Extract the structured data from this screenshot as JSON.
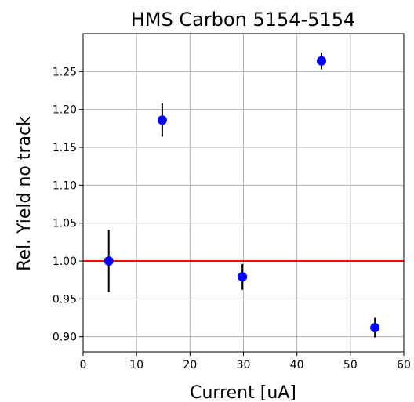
{
  "chart_data": {
    "type": "scatter",
    "title": "HMS Carbon 5154-5154",
    "xlabel": "Current [uA]",
    "ylabel": "Rel. Yield no track",
    "xlim": [
      0,
      60
    ],
    "ylim": [
      0.88,
      1.3
    ],
    "xticks": [
      0,
      10,
      20,
      30,
      40,
      50,
      60
    ],
    "xtick_labels": [
      "0",
      "10",
      "20",
      "30",
      "40",
      "50",
      "60"
    ],
    "yticks": [
      0.9,
      0.95,
      1.0,
      1.05,
      1.1,
      1.15,
      1.2,
      1.25
    ],
    "ytick_labels": [
      "0.90",
      "0.95",
      "1.00",
      "1.05",
      "1.10",
      "1.15",
      "1.20",
      "1.25"
    ],
    "grid": true,
    "points": [
      {
        "x": 4.8,
        "y": 1.0,
        "err": 0.041
      },
      {
        "x": 14.8,
        "y": 1.186,
        "err": 0.022
      },
      {
        "x": 29.8,
        "y": 0.979,
        "err": 0.017
      },
      {
        "x": 44.6,
        "y": 1.264,
        "err": 0.011
      },
      {
        "x": 54.6,
        "y": 0.912,
        "err": 0.013
      }
    ],
    "reference_line": {
      "y": 1.0,
      "color": "#ff0000"
    },
    "marker_color": "#0000ff",
    "errorbar_color": "#000000"
  }
}
